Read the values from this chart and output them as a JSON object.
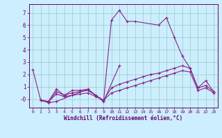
{
  "xlabel": "Windchill (Refroidissement éolien,°C)",
  "bg_color": "#cceeff",
  "line_color": "#882288",
  "grid_color": "#99ccbb",
  "xlim": [
    -0.5,
    23.5
  ],
  "ylim": [
    -0.7,
    7.7
  ],
  "xticks": [
    0,
    1,
    2,
    3,
    4,
    5,
    6,
    7,
    8,
    9,
    10,
    11,
    12,
    13,
    14,
    15,
    16,
    17,
    18,
    19,
    20,
    21,
    22,
    23
  ],
  "ytick_vals": [
    0,
    1,
    2,
    3,
    4,
    5,
    6,
    7
  ],
  "ytick_labels": [
    "-0",
    "1",
    "2",
    "3",
    "4",
    "5",
    "6",
    "7"
  ],
  "series": [
    {
      "x": [
        0,
        1,
        2,
        3,
        4,
        5,
        6,
        7,
        8,
        9,
        10,
        11,
        12,
        13,
        16,
        17,
        18,
        19,
        20,
        21,
        22,
        23
      ],
      "y": [
        2.4,
        -0.1,
        -0.2,
        0.8,
        0.3,
        0.7,
        0.7,
        0.8,
        0.3,
        -0.2,
        6.4,
        7.2,
        6.3,
        6.3,
        6.0,
        6.6,
        5.0,
        3.5,
        2.5,
        0.9,
        1.5,
        0.6
      ]
    },
    {
      "x": [
        1,
        2,
        3,
        7,
        9,
        11
      ],
      "y": [
        -0.1,
        -0.3,
        -0.2,
        0.8,
        -0.2,
        2.7
      ]
    },
    {
      "x": [
        1,
        2,
        3,
        4,
        5,
        6,
        7,
        8,
        9,
        10,
        11,
        12,
        13,
        14,
        15,
        16,
        17,
        18,
        19,
        20,
        21,
        22,
        23
      ],
      "y": [
        -0.1,
        -0.2,
        0.6,
        0.3,
        0.5,
        0.6,
        0.7,
        0.3,
        -0.1,
        0.9,
        1.2,
        1.4,
        1.6,
        1.8,
        2.0,
        2.1,
        2.3,
        2.5,
        2.7,
        2.5,
        0.9,
        1.1,
        0.6
      ]
    },
    {
      "x": [
        1,
        2,
        3,
        4,
        5,
        6,
        7,
        8,
        9,
        10,
        11,
        12,
        13,
        14,
        15,
        16,
        17,
        18,
        19,
        20,
        21,
        22,
        23
      ],
      "y": [
        -0.1,
        -0.2,
        0.4,
        0.2,
        0.3,
        0.4,
        0.5,
        0.2,
        -0.1,
        0.5,
        0.7,
        0.9,
        1.1,
        1.3,
        1.5,
        1.7,
        1.9,
        2.1,
        2.3,
        2.2,
        0.7,
        0.9,
        0.5
      ]
    }
  ]
}
